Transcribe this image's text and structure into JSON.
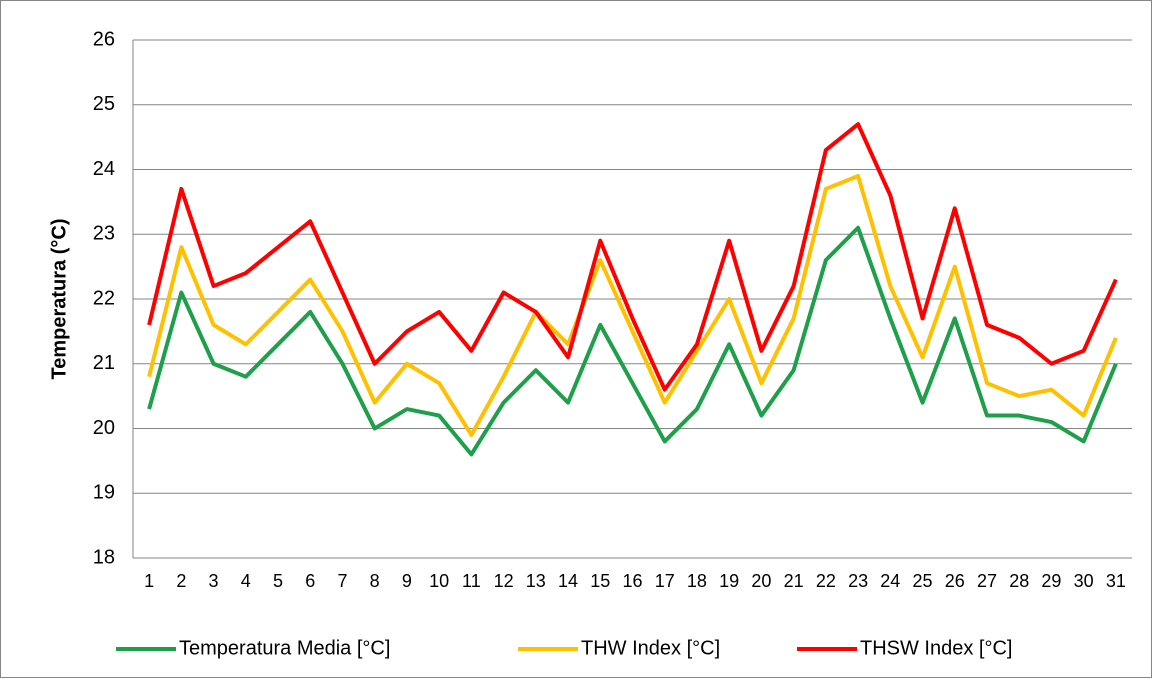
{
  "chart_data": {
    "type": "line",
    "y_label": "Temperatura (°C)",
    "categories": [
      1,
      2,
      3,
      4,
      5,
      6,
      7,
      8,
      9,
      10,
      11,
      12,
      13,
      14,
      15,
      16,
      17,
      18,
      19,
      20,
      21,
      22,
      23,
      24,
      25,
      26,
      27,
      28,
      29,
      30,
      31
    ],
    "series": [
      {
        "name": "Temperatura Media [°C]",
        "color": "#1ea04a",
        "values": [
          20.3,
          22.1,
          21.0,
          20.8,
          21.3,
          21.8,
          21.0,
          20.0,
          20.3,
          20.2,
          19.6,
          20.4,
          20.9,
          20.4,
          21.6,
          20.7,
          19.8,
          20.3,
          21.3,
          20.2,
          20.9,
          22.6,
          23.1,
          21.7,
          20.4,
          21.7,
          20.2,
          20.2,
          20.1,
          19.8,
          21.0
        ]
      },
      {
        "name": "THW Index [°C]",
        "color": "#ffc000",
        "values": [
          20.8,
          22.8,
          21.6,
          21.3,
          21.8,
          22.3,
          21.5,
          20.4,
          21.0,
          20.7,
          19.9,
          20.8,
          21.8,
          21.3,
          22.6,
          21.5,
          20.4,
          21.2,
          22.0,
          20.7,
          21.7,
          23.7,
          23.9,
          22.2,
          21.1,
          22.5,
          20.7,
          20.5,
          20.6,
          20.2,
          21.4
        ]
      },
      {
        "name": "THSW Index [°C]",
        "color": "#ff0000",
        "values": [
          21.6,
          23.7,
          22.2,
          22.4,
          22.8,
          23.2,
          22.1,
          21.0,
          21.5,
          21.8,
          21.2,
          22.1,
          21.8,
          21.1,
          22.9,
          21.7,
          20.6,
          21.3,
          22.9,
          21.2,
          22.2,
          24.3,
          24.7,
          23.6,
          21.7,
          23.4,
          21.6,
          21.4,
          21.0,
          21.2,
          22.3
        ]
      }
    ],
    "ylim": [
      18,
      26
    ],
    "yticks": [
      18,
      19,
      20,
      21,
      22,
      23,
      24,
      25,
      26
    ],
    "grid": true,
    "legend": "bottom"
  }
}
